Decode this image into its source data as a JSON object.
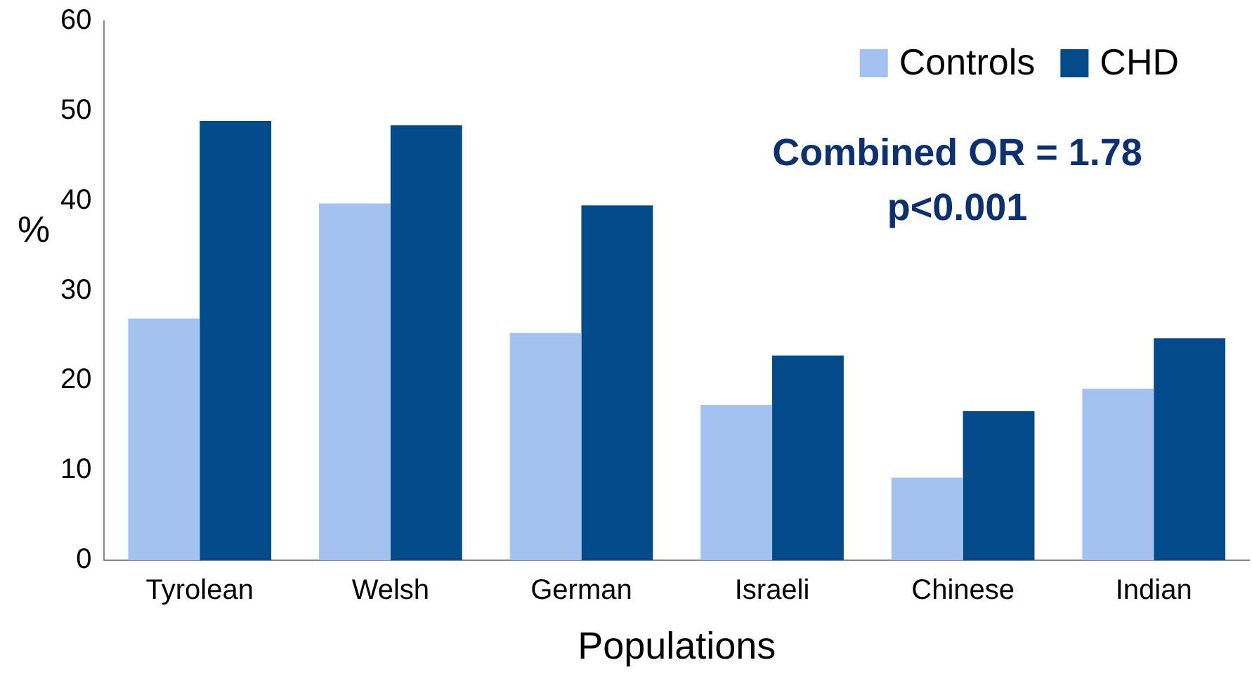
{
  "chart_data": {
    "type": "bar",
    "xlabel": "Populations",
    "ylabel": "%",
    "categories": [
      "Tyrolean",
      "Welsh",
      "German",
      "Israeli",
      "Chinese",
      "Indian"
    ],
    "series": [
      {
        "name": "Controls",
        "color": "#a4c2f0",
        "values": [
          26.9,
          39.7,
          25.3,
          17.3,
          9.2,
          19.1
        ]
      },
      {
        "name": "CHD",
        "color": "#034a8a",
        "values": [
          48.9,
          48.4,
          39.5,
          22.8,
          16.6,
          24.7
        ]
      }
    ],
    "ylim": [
      0,
      60
    ],
    "yticks": [
      0,
      10,
      20,
      30,
      40,
      50,
      60
    ],
    "grid": false,
    "legend": "top right",
    "annotations": [
      "Combined OR = 1.78",
      "p<0.001"
    ]
  }
}
